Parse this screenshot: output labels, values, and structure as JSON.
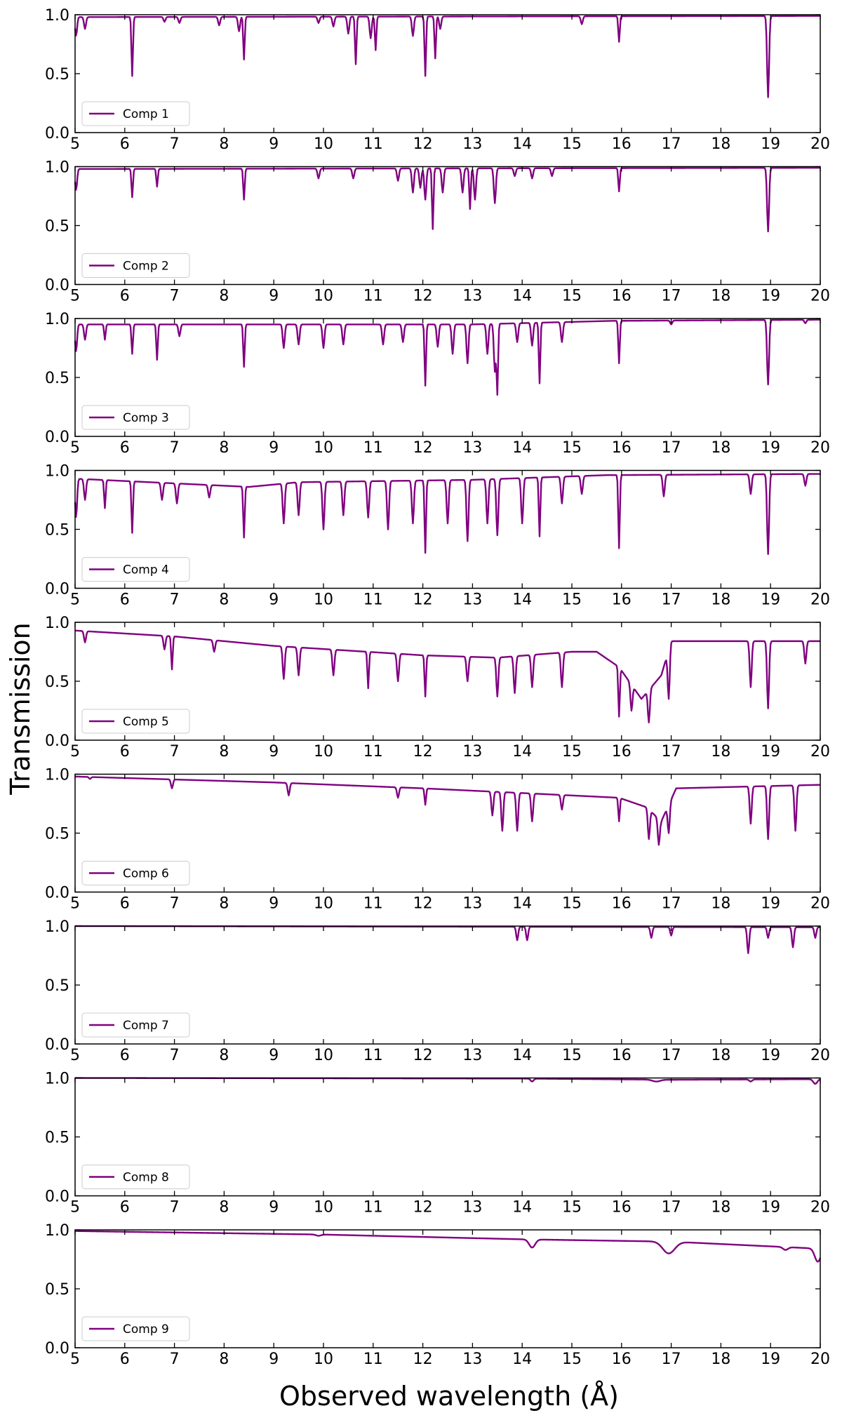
{
  "chart_data": {
    "type": "line",
    "color": "#800080",
    "shared_x_axis": {
      "min": 5,
      "max": 20,
      "ticks": [
        5,
        6,
        7,
        8,
        9,
        10,
        11,
        12,
        13,
        14,
        15,
        16,
        17,
        18,
        19,
        20
      ]
    },
    "y_axis": {
      "min": 0,
      "max": 1,
      "ticks": [
        0.0,
        0.5,
        1.0
      ],
      "tick_labels": [
        "0.0",
        "0.5",
        "1.0"
      ]
    },
    "xlabel": "Observed wavelength (Å)",
    "ylabel": "Transmission",
    "legend_position": "lower-left",
    "grid": false,
    "panels": [
      {
        "name": "Comp 1",
        "baseline": [
          [
            5.0,
            0.98
          ],
          [
            20.0,
            0.99
          ]
        ],
        "absorption": [
          [
            5.02,
            0.82,
            0.02
          ],
          [
            5.2,
            0.88,
            0.02
          ],
          [
            6.15,
            0.48,
            0.015
          ],
          [
            6.8,
            0.94,
            0.02
          ],
          [
            7.1,
            0.93,
            0.02
          ],
          [
            7.9,
            0.91,
            0.02
          ],
          [
            8.3,
            0.86,
            0.02
          ],
          [
            8.4,
            0.62,
            0.015
          ],
          [
            9.9,
            0.93,
            0.02
          ],
          [
            10.2,
            0.9,
            0.02
          ],
          [
            10.5,
            0.84,
            0.02
          ],
          [
            10.65,
            0.58,
            0.015
          ],
          [
            10.95,
            0.8,
            0.02
          ],
          [
            11.05,
            0.7,
            0.015
          ],
          [
            11.8,
            0.82,
            0.02
          ],
          [
            12.05,
            0.48,
            0.015
          ],
          [
            12.25,
            0.63,
            0.015
          ],
          [
            12.35,
            0.88,
            0.02
          ],
          [
            15.2,
            0.92,
            0.02
          ],
          [
            15.95,
            0.77,
            0.015
          ],
          [
            18.95,
            0.3,
            0.02
          ]
        ]
      },
      {
        "name": "Comp 2",
        "baseline": [
          [
            5.0,
            0.98
          ],
          [
            20.0,
            0.99
          ]
        ],
        "absorption": [
          [
            5.02,
            0.8,
            0.02
          ],
          [
            6.15,
            0.74,
            0.015
          ],
          [
            6.65,
            0.83,
            0.015
          ],
          [
            8.4,
            0.72,
            0.015
          ],
          [
            9.9,
            0.9,
            0.02
          ],
          [
            10.6,
            0.9,
            0.02
          ],
          [
            11.5,
            0.88,
            0.02
          ],
          [
            11.8,
            0.78,
            0.02
          ],
          [
            11.95,
            0.82,
            0.02
          ],
          [
            12.05,
            0.72,
            0.02
          ],
          [
            12.2,
            0.47,
            0.015
          ],
          [
            12.4,
            0.78,
            0.02
          ],
          [
            12.8,
            0.78,
            0.02
          ],
          [
            12.95,
            0.64,
            0.015
          ],
          [
            13.05,
            0.72,
            0.02
          ],
          [
            13.45,
            0.69,
            0.02
          ],
          [
            13.85,
            0.92,
            0.02
          ],
          [
            14.2,
            0.9,
            0.02
          ],
          [
            14.6,
            0.92,
            0.02
          ],
          [
            15.95,
            0.79,
            0.015
          ],
          [
            18.95,
            0.45,
            0.02
          ]
        ]
      },
      {
        "name": "Comp 3",
        "baseline": [
          [
            5.0,
            0.95
          ],
          [
            13.0,
            0.95
          ],
          [
            15.8,
            0.98
          ],
          [
            20.0,
            0.99
          ]
        ],
        "absorption": [
          [
            5.02,
            0.72,
            0.02
          ],
          [
            5.2,
            0.82,
            0.02
          ],
          [
            5.6,
            0.82,
            0.015
          ],
          [
            6.15,
            0.7,
            0.015
          ],
          [
            6.65,
            0.65,
            0.015
          ],
          [
            7.1,
            0.85,
            0.02
          ],
          [
            8.4,
            0.59,
            0.015
          ],
          [
            9.2,
            0.75,
            0.02
          ],
          [
            9.5,
            0.78,
            0.02
          ],
          [
            10.0,
            0.75,
            0.02
          ],
          [
            10.4,
            0.78,
            0.02
          ],
          [
            11.2,
            0.78,
            0.02
          ],
          [
            11.6,
            0.8,
            0.02
          ],
          [
            12.05,
            0.43,
            0.015
          ],
          [
            12.3,
            0.76,
            0.02
          ],
          [
            12.6,
            0.7,
            0.02
          ],
          [
            12.9,
            0.62,
            0.02
          ],
          [
            13.3,
            0.7,
            0.02
          ],
          [
            13.45,
            0.55,
            0.02
          ],
          [
            13.5,
            0.37,
            0.015
          ],
          [
            13.9,
            0.8,
            0.02
          ],
          [
            14.2,
            0.77,
            0.02
          ],
          [
            14.35,
            0.45,
            0.015
          ],
          [
            14.8,
            0.8,
            0.02
          ],
          [
            15.95,
            0.62,
            0.015
          ],
          [
            17.0,
            0.95,
            0.02
          ],
          [
            18.95,
            0.44,
            0.02
          ],
          [
            19.7,
            0.96,
            0.02
          ]
        ]
      },
      {
        "name": "Comp 4",
        "baseline": [
          [
            5.0,
            0.93
          ],
          [
            8.5,
            0.86
          ],
          [
            9.5,
            0.9
          ],
          [
            13.0,
            0.92
          ],
          [
            15.7,
            0.96
          ],
          [
            20.0,
            0.97
          ]
        ],
        "absorption": [
          [
            5.02,
            0.6,
            0.02
          ],
          [
            5.2,
            0.75,
            0.02
          ],
          [
            5.6,
            0.68,
            0.015
          ],
          [
            6.15,
            0.47,
            0.015
          ],
          [
            6.75,
            0.75,
            0.02
          ],
          [
            7.05,
            0.72,
            0.02
          ],
          [
            7.7,
            0.77,
            0.02
          ],
          [
            8.4,
            0.43,
            0.015
          ],
          [
            9.2,
            0.55,
            0.02
          ],
          [
            9.5,
            0.62,
            0.02
          ],
          [
            10.0,
            0.5,
            0.02
          ],
          [
            10.4,
            0.62,
            0.02
          ],
          [
            10.9,
            0.6,
            0.02
          ],
          [
            11.3,
            0.5,
            0.02
          ],
          [
            11.8,
            0.55,
            0.02
          ],
          [
            12.05,
            0.3,
            0.015
          ],
          [
            12.5,
            0.55,
            0.02
          ],
          [
            12.9,
            0.4,
            0.02
          ],
          [
            13.3,
            0.55,
            0.02
          ],
          [
            13.5,
            0.45,
            0.02
          ],
          [
            14.0,
            0.55,
            0.02
          ],
          [
            14.35,
            0.44,
            0.015
          ],
          [
            14.8,
            0.72,
            0.02
          ],
          [
            15.2,
            0.8,
            0.02
          ],
          [
            15.95,
            0.34,
            0.015
          ],
          [
            16.85,
            0.78,
            0.02
          ],
          [
            18.6,
            0.8,
            0.02
          ],
          [
            18.95,
            0.29,
            0.02
          ],
          [
            19.7,
            0.87,
            0.02
          ]
        ]
      },
      {
        "name": "Comp 5",
        "baseline": [
          [
            5.0,
            0.93
          ],
          [
            7.0,
            0.88
          ],
          [
            9.0,
            0.8
          ],
          [
            12.0,
            0.72
          ],
          [
            13.5,
            0.7
          ],
          [
            15.0,
            0.75
          ],
          [
            15.5,
            0.75
          ],
          [
            15.95,
            0.62
          ],
          [
            16.4,
            0.35
          ],
          [
            16.8,
            0.55
          ],
          [
            17.0,
            0.84
          ],
          [
            20.0,
            0.84
          ]
        ],
        "absorption": [
          [
            5.2,
            0.83,
            0.02
          ],
          [
            6.8,
            0.77,
            0.02
          ],
          [
            6.95,
            0.6,
            0.015
          ],
          [
            7.8,
            0.75,
            0.02
          ],
          [
            9.2,
            0.52,
            0.02
          ],
          [
            9.5,
            0.55,
            0.02
          ],
          [
            10.2,
            0.55,
            0.02
          ],
          [
            10.9,
            0.44,
            0.015
          ],
          [
            11.5,
            0.5,
            0.02
          ],
          [
            12.05,
            0.37,
            0.015
          ],
          [
            12.9,
            0.5,
            0.02
          ],
          [
            13.5,
            0.37,
            0.02
          ],
          [
            13.85,
            0.4,
            0.02
          ],
          [
            14.2,
            0.45,
            0.02
          ],
          [
            14.8,
            0.45,
            0.02
          ],
          [
            15.95,
            0.2,
            0.015
          ],
          [
            16.2,
            0.25,
            0.02
          ],
          [
            16.55,
            0.15,
            0.02
          ],
          [
            16.95,
            0.35,
            0.02
          ],
          [
            18.6,
            0.45,
            0.02
          ],
          [
            18.95,
            0.27,
            0.02
          ],
          [
            19.7,
            0.65,
            0.02
          ]
        ]
      },
      {
        "name": "Comp 6",
        "baseline": [
          [
            5.0,
            0.98
          ],
          [
            9.0,
            0.93
          ],
          [
            12.0,
            0.88
          ],
          [
            14.0,
            0.84
          ],
          [
            15.95,
            0.8
          ],
          [
            16.5,
            0.72
          ],
          [
            16.8,
            0.6
          ],
          [
            17.1,
            0.88
          ],
          [
            20.0,
            0.91
          ]
        ],
        "absorption": [
          [
            5.3,
            0.96,
            0.02
          ],
          [
            6.95,
            0.88,
            0.02
          ],
          [
            9.3,
            0.82,
            0.02
          ],
          [
            11.5,
            0.8,
            0.02
          ],
          [
            12.05,
            0.74,
            0.015
          ],
          [
            13.4,
            0.65,
            0.02
          ],
          [
            13.6,
            0.52,
            0.02
          ],
          [
            13.9,
            0.52,
            0.02
          ],
          [
            14.2,
            0.6,
            0.02
          ],
          [
            14.8,
            0.7,
            0.02
          ],
          [
            15.95,
            0.6,
            0.015
          ],
          [
            16.55,
            0.45,
            0.02
          ],
          [
            16.75,
            0.4,
            0.02
          ],
          [
            16.95,
            0.5,
            0.02
          ],
          [
            18.6,
            0.58,
            0.02
          ],
          [
            18.95,
            0.45,
            0.02
          ],
          [
            19.5,
            0.52,
            0.02
          ]
        ]
      },
      {
        "name": "Comp 7",
        "baseline": [
          [
            5.0,
            1.0
          ],
          [
            20.0,
            0.99
          ]
        ],
        "absorption": [
          [
            13.9,
            0.88,
            0.02
          ],
          [
            14.1,
            0.88,
            0.02
          ],
          [
            16.6,
            0.9,
            0.02
          ],
          [
            17.0,
            0.92,
            0.02
          ],
          [
            18.55,
            0.77,
            0.02
          ],
          [
            18.95,
            0.9,
            0.02
          ],
          [
            19.45,
            0.82,
            0.02
          ],
          [
            19.9,
            0.9,
            0.02
          ]
        ]
      },
      {
        "name": "Comp 8",
        "baseline": [
          [
            5.0,
            1.0
          ],
          [
            14.0,
            0.995
          ],
          [
            17.0,
            0.985
          ],
          [
            20.0,
            0.99
          ]
        ],
        "absorption": [
          [
            14.2,
            0.97,
            0.03
          ],
          [
            16.7,
            0.97,
            0.08
          ],
          [
            18.6,
            0.97,
            0.03
          ],
          [
            19.9,
            0.95,
            0.04
          ]
        ]
      },
      {
        "name": "Comp 9",
        "baseline": [
          [
            5.0,
            0.99
          ],
          [
            10.0,
            0.96
          ],
          [
            13.0,
            0.93
          ],
          [
            14.0,
            0.92
          ],
          [
            17.0,
            0.9
          ],
          [
            20.0,
            0.84
          ]
        ],
        "absorption": [
          [
            9.9,
            0.95,
            0.05
          ],
          [
            14.2,
            0.85,
            0.06
          ],
          [
            16.95,
            0.8,
            0.12
          ],
          [
            19.3,
            0.83,
            0.05
          ],
          [
            19.95,
            0.73,
            0.06
          ]
        ]
      }
    ]
  }
}
